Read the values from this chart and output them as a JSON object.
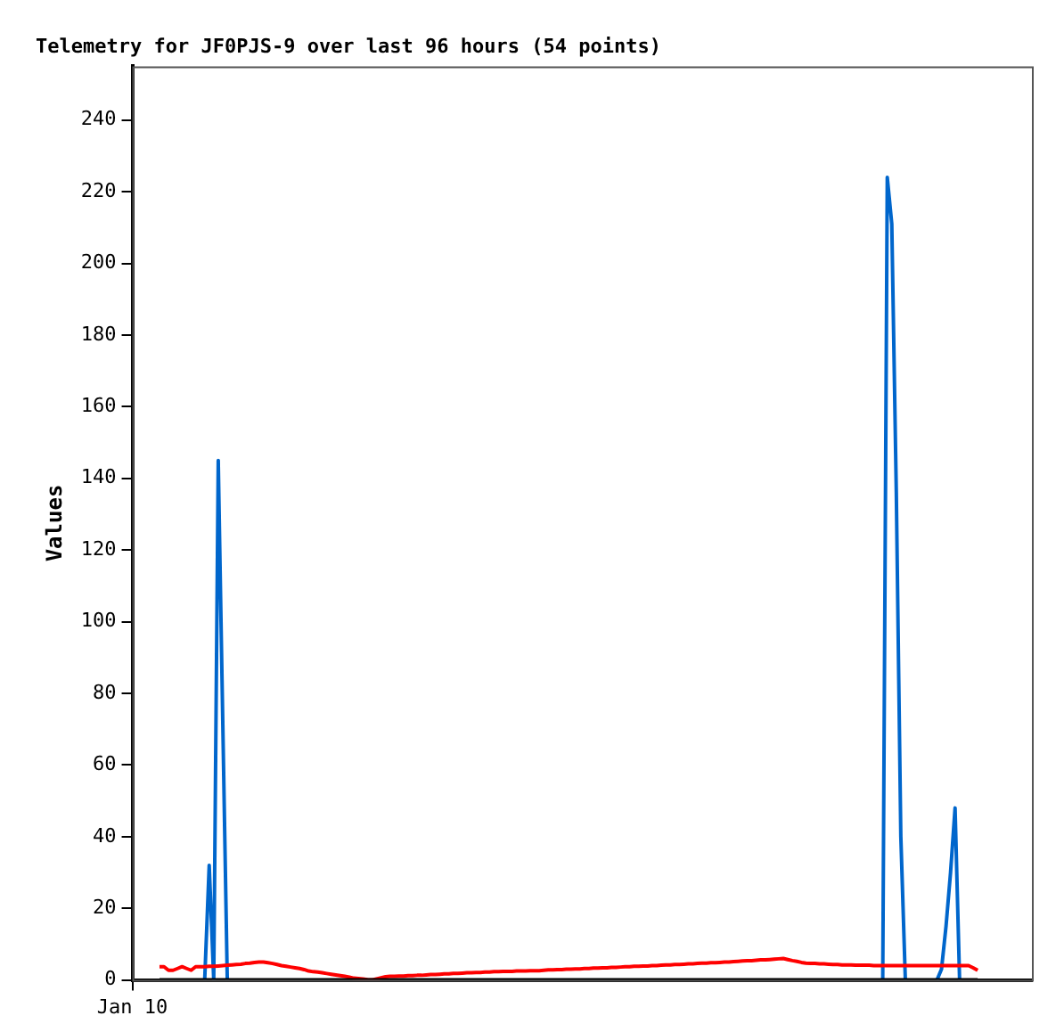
{
  "chart_data": {
    "type": "line",
    "title": "Telemetry for JF0PJS-9 over last 96 hours (54 points)",
    "ylabel": "Values",
    "ylim": [
      0,
      255
    ],
    "yticks": [
      0,
      20,
      40,
      60,
      80,
      100,
      120,
      140,
      160,
      180,
      200,
      220,
      240
    ],
    "grid": false,
    "legend": false,
    "marker": "none",
    "line_style": "solid",
    "categories": [
      "Jan 10",
      null,
      null,
      null,
      null,
      null,
      null,
      null,
      null,
      null,
      null,
      null,
      null,
      null,
      null,
      null,
      null,
      null,
      null,
      null,
      null,
      null,
      null,
      null,
      null,
      null,
      null,
      null,
      null,
      null,
      null,
      null,
      null,
      null,
      null,
      null,
      null,
      null,
      null,
      null,
      null,
      null,
      null,
      null,
      null,
      null,
      null,
      null,
      null,
      null,
      null,
      null,
      null,
      null,
      null,
      null,
      null,
      null,
      null,
      null,
      null,
      null,
      null,
      null,
      null,
      null,
      null,
      null,
      null,
      null,
      null,
      null,
      null,
      null,
      null,
      null,
      null,
      null,
      null,
      null,
      null,
      null,
      null,
      null,
      null,
      null,
      null,
      null,
      null,
      null,
      null,
      null,
      null,
      null,
      null,
      null,
      null,
      null,
      null,
      null,
      null,
      null,
      null,
      null,
      null,
      null,
      null,
      null,
      null,
      null,
      null,
      null,
      null,
      null,
      null,
      null,
      null,
      null,
      null,
      null,
      null,
      null,
      null,
      null,
      null,
      null,
      null,
      null,
      null,
      null,
      null,
      null,
      null,
      null,
      null,
      null,
      null,
      null,
      null,
      null,
      null,
      null,
      null,
      null,
      null,
      null,
      null,
      null,
      null,
      null,
      null,
      null,
      null,
      null,
      null,
      null,
      null,
      null,
      null,
      null,
      null,
      null,
      null,
      null,
      null,
      null,
      null,
      null,
      null,
      null,
      null,
      null,
      null,
      null,
      null,
      null,
      null,
      null,
      null,
      null,
      null,
      null,
      null,
      null,
      null,
      null,
      null,
      null,
      null,
      null,
      null,
      null,
      null,
      null,
      null,
      null,
      null,
      null,
      null,
      null
    ],
    "series": [
      {
        "color": "#0066cc",
        "values": [
          null,
          null,
          null,
          null,
          null,
          null,
          null,
          null,
          null,
          null,
          null,
          null,
          null,
          null,
          null,
          null,
          0,
          32,
          0,
          145,
          72,
          0,
          null,
          null,
          null,
          null,
          null,
          null,
          null,
          null,
          null,
          null,
          null,
          null,
          null,
          null,
          null,
          null,
          null,
          null,
          null,
          null,
          null,
          null,
          null,
          null,
          null,
          null,
          null,
          null,
          null,
          null,
          null,
          null,
          null,
          null,
          null,
          null,
          null,
          null,
          null,
          null,
          null,
          null,
          null,
          null,
          null,
          null,
          null,
          null,
          null,
          null,
          null,
          null,
          null,
          null,
          null,
          null,
          null,
          null,
          null,
          null,
          null,
          null,
          null,
          null,
          null,
          null,
          null,
          null,
          null,
          null,
          null,
          null,
          null,
          null,
          null,
          null,
          null,
          null,
          null,
          null,
          null,
          null,
          null,
          null,
          null,
          null,
          null,
          null,
          null,
          null,
          null,
          null,
          null,
          null,
          null,
          null,
          null,
          null,
          null,
          null,
          null,
          null,
          null,
          null,
          null,
          null,
          null,
          null,
          null,
          null,
          null,
          null,
          null,
          null,
          null,
          null,
          null,
          null,
          null,
          null,
          null,
          null,
          null,
          null,
          null,
          null,
          null,
          null,
          null,
          null,
          null,
          null,
          null,
          null,
          null,
          null,
          null,
          null,
          null,
          null,
          null,
          null,
          null,
          null,
          0,
          224,
          211,
          136,
          40,
          0,
          null,
          null,
          null,
          null,
          null,
          null,
          0,
          3,
          15,
          30,
          48,
          0,
          null,
          null,
          null,
          null,
          null,
          null,
          null,
          null,
          null,
          null,
          null,
          null,
          null,
          null,
          null,
          null
        ]
      },
      {
        "color": "#ff0000",
        "values": [
          null,
          null,
          null,
          null,
          null,
          null,
          3.7,
          3.7,
          2.7,
          2.7,
          3.2,
          3.7,
          3.2,
          2.7,
          3.7,
          3.7,
          3.7,
          3.8,
          3.8,
          3.9,
          4.0,
          4.1,
          4.2,
          4.3,
          4.4,
          4.6,
          4.7,
          4.9,
          5.0,
          5.0,
          4.8,
          4.6,
          4.3,
          4.0,
          3.8,
          3.6,
          3.4,
          3.2,
          2.9,
          2.5,
          2.3,
          2.2,
          2.0,
          1.8,
          1.6,
          1.4,
          1.2,
          1.0,
          0.8,
          0.5,
          0.4,
          0.3,
          0.1,
          0,
          0.3,
          0.6,
          0.9,
          1.0,
          1.0,
          1.1,
          1.1,
          1.2,
          1.2,
          1.3,
          1.3,
          1.4,
          1.5,
          1.5,
          1.6,
          1.7,
          1.7,
          1.8,
          1.8,
          1.9,
          2.0,
          2.0,
          2.1,
          2.1,
          2.2,
          2.2,
          2.3,
          2.3,
          2.4,
          2.4,
          2.4,
          2.5,
          2.5,
          2.5,
          2.6,
          2.6,
          2.6,
          2.7,
          2.8,
          2.8,
          2.9,
          2.9,
          3.0,
          3.0,
          3.1,
          3.1,
          3.2,
          3.2,
          3.3,
          3.3,
          3.4,
          3.4,
          3.5,
          3.5,
          3.6,
          3.7,
          3.7,
          3.8,
          3.8,
          3.9,
          3.9,
          4.0,
          4.0,
          4.1,
          4.2,
          4.2,
          4.3,
          4.3,
          4.4,
          4.5,
          4.5,
          4.6,
          4.7,
          4.7,
          4.8,
          4.8,
          4.9,
          5.0,
          5.0,
          5.1,
          5.2,
          5.3,
          5.4,
          5.4,
          5.5,
          5.6,
          5.6,
          5.7,
          5.8,
          5.9,
          6.0,
          5.7,
          5.4,
          5.2,
          4.9,
          4.7,
          4.6,
          4.6,
          4.5,
          4.5,
          4.4,
          4.3,
          4.3,
          4.2,
          4.2,
          4.2,
          4.1,
          4.1,
          4.1,
          4.1,
          4.0,
          4.0,
          4.0,
          4.0,
          4.0,
          4.0,
          4.0,
          4.0,
          4.0,
          4.0,
          4.0,
          4.0,
          4.0,
          4.0,
          4.0,
          4.0,
          4.0,
          4.0,
          4.0,
          4.0,
          4.0,
          4.0,
          3.4,
          2.7,
          null,
          null,
          null,
          null,
          null,
          null,
          null,
          null,
          null,
          null,
          null,
          null
        ]
      },
      {
        "color": "#000000",
        "values": [
          null,
          null,
          null,
          null,
          null,
          null,
          0,
          0,
          0,
          0,
          0,
          0,
          0,
          0,
          0,
          0,
          0,
          0,
          0,
          0,
          0,
          0,
          0,
          0,
          0,
          0,
          0,
          0,
          0,
          0,
          0,
          0,
          0,
          0,
          0,
          0,
          0,
          0,
          0,
          0,
          0,
          0,
          0,
          0,
          0,
          0,
          0,
          0,
          0,
          0,
          0,
          0,
          0,
          0,
          0,
          0,
          0,
          0,
          0,
          0,
          0,
          0,
          0,
          0,
          0,
          0,
          0,
          0,
          0,
          0,
          0,
          0,
          0,
          0,
          0,
          0,
          0,
          0,
          0,
          0,
          0,
          0,
          0,
          0,
          0,
          0,
          0,
          0,
          0,
          0,
          0,
          0,
          0,
          0,
          0,
          0,
          0,
          0,
          0,
          0,
          0,
          0,
          0,
          0,
          0,
          0,
          0,
          0,
          0,
          0,
          0,
          0,
          0,
          0,
          0,
          0,
          0,
          0,
          0,
          0,
          0,
          0,
          0,
          0,
          0,
          0,
          0,
          0,
          0,
          0,
          0,
          0,
          0,
          0,
          0,
          0,
          0,
          0,
          0,
          0,
          0,
          0,
          0,
          0,
          0,
          0,
          0,
          0,
          0,
          0,
          0,
          0,
          0,
          0,
          0,
          0,
          0,
          0,
          0,
          0,
          0,
          0,
          0,
          0,
          0,
          0,
          0,
          0,
          0,
          0,
          0,
          0,
          0,
          0,
          0,
          0,
          0,
          0,
          0,
          0,
          0,
          0,
          0,
          0,
          0,
          0,
          0,
          0,
          null,
          null,
          null,
          null,
          null,
          null,
          null,
          null,
          null,
          null,
          null,
          null
        ]
      }
    ]
  }
}
